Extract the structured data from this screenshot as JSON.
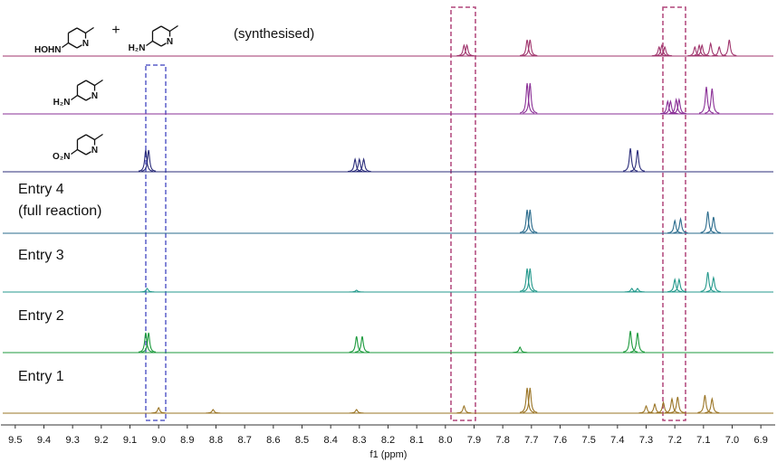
{
  "chart_data": {
    "type": "nmr-stack",
    "xlabel": "f1 (ppm)",
    "xlim": [
      9.55,
      6.85
    ],
    "xticks": [
      9.5,
      9.4,
      9.3,
      9.2,
      9.1,
      {
        "value": 9,
        "label": "9.0"
      },
      8.9,
      8.8,
      8.7,
      8.6,
      8.5,
      8.4,
      8.3,
      8.2,
      8.1,
      {
        "value": 8,
        "label": "8.0"
      },
      7.9,
      7.8,
      7.7,
      7.6,
      7.5,
      7.4,
      7.3,
      7.2,
      7.1,
      {
        "value": 7,
        "label": "7.0"
      },
      6.9
    ],
    "plus": "+",
    "annotation": "(synthesised)",
    "series": [
      {
        "color": "#a0356d",
        "structures": [
          {
            "substituent": "HOHN",
            "ring_atom": "N"
          },
          {
            "substituent": "H₂N",
            "ring_atom": "N"
          }
        ],
        "x": [
          7.935,
          7.925,
          7.715,
          7.705,
          7.255,
          7.245,
          7.235,
          7.13,
          7.115,
          7.105,
          7.075,
          7.045,
          7.01
        ],
        "values": [
          12,
          12,
          18,
          18,
          10,
          12,
          10,
          10,
          12,
          12,
          14,
          10,
          18
        ]
      },
      {
        "color": "#8a2f96",
        "structures": [
          {
            "substituent": "H₂N",
            "ring_atom": "N"
          }
        ],
        "x": [
          7.715,
          7.705,
          7.225,
          7.215,
          7.195,
          7.185,
          7.09,
          7.07
        ],
        "values": [
          34,
          34,
          14,
          14,
          16,
          16,
          30,
          28
        ]
      },
      {
        "color": "#2b2d7a",
        "structures": [
          {
            "substituent": "O₂N",
            "ring_atom": "N"
          }
        ],
        "x": [
          9.045,
          9.035,
          8.315,
          8.3,
          8.285,
          7.355,
          7.33
        ],
        "values": [
          24,
          24,
          14,
          14,
          14,
          26,
          24
        ]
      },
      {
        "color": "#2a6b8c",
        "labels": [
          "Entry 4",
          "(full reaction)"
        ],
        "x": [
          7.715,
          7.705,
          7.2,
          7.18,
          7.085,
          7.065
        ],
        "values": [
          26,
          26,
          14,
          16,
          24,
          18
        ]
      },
      {
        "color": "#24998c",
        "labels": [
          "Entry 3"
        ],
        "x": [
          9.04,
          8.31,
          7.715,
          7.705,
          7.35,
          7.33,
          7.2,
          7.185,
          7.085,
          7.065
        ],
        "values": [
          4,
          2,
          26,
          26,
          4,
          4,
          14,
          14,
          22,
          16
        ]
      },
      {
        "color": "#1c9a3c",
        "labels": [
          "Entry 2"
        ],
        "x": [
          9.045,
          9.035,
          8.31,
          8.29,
          7.74,
          7.355,
          7.33
        ],
        "values": [
          22,
          22,
          18,
          18,
          6,
          24,
          22
        ]
      },
      {
        "color": "#9a7424",
        "labels": [
          "Entry 1"
        ],
        "x": [
          9.0,
          8.81,
          8.31,
          7.935,
          7.715,
          7.705,
          7.3,
          7.27,
          7.24,
          7.21,
          7.19,
          7.095,
          7.07
        ],
        "values": [
          6,
          4,
          4,
          8,
          28,
          28,
          8,
          10,
          12,
          16,
          18,
          20,
          16
        ]
      }
    ]
  }
}
